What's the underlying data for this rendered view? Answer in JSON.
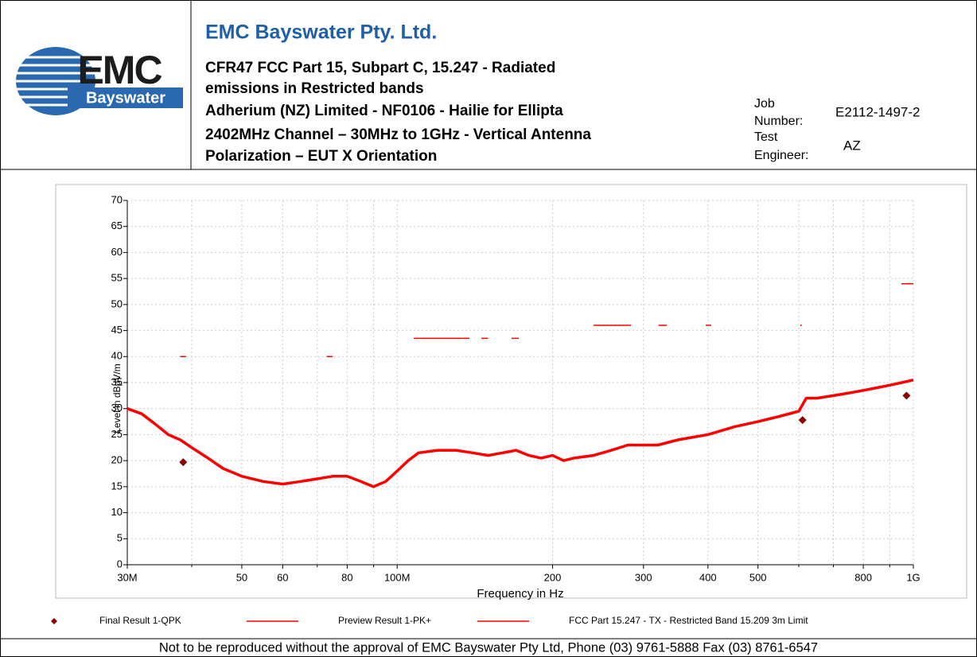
{
  "header": {
    "logo_text": "EMC",
    "logo_subtext": "Bayswater",
    "company": "EMC Bayswater Pty. Ltd.",
    "subtitle_lines": [
      "CFR47 FCC Part 15, Subpart C, 15.247 - Radiated",
      "emissions in Restricted bands",
      "Adherium (NZ) Limited - NF0106 - Hailie for Ellipta",
      "2402MHz Channel – 30MHz to 1GHz - Vertical Antenna",
      "Polarization – EUT X Orientation"
    ],
    "job_number_label": [
      "Job",
      "Number:"
    ],
    "job_number": "E2112-1497-2",
    "test_engineer_label": [
      "Test",
      "Engineer:"
    ],
    "test_engineer": "AZ"
  },
  "chart_data": {
    "type": "line",
    "xscale": "log",
    "grid": true,
    "xlabel": "Frequency in Hz",
    "ylabel": "Level in dBµV/m",
    "xlim": [
      30000000,
      1000000000
    ],
    "ylim": [
      0,
      70
    ],
    "xticks": [
      {
        "value": 30000000,
        "label": "30M"
      },
      {
        "value": 50000000,
        "label": "50"
      },
      {
        "value": 60000000,
        "label": "60"
      },
      {
        "value": 80000000,
        "label": "80"
      },
      {
        "value": 100000000,
        "label": "100M"
      },
      {
        "value": 200000000,
        "label": "200"
      },
      {
        "value": 300000000,
        "label": "300"
      },
      {
        "value": 400000000,
        "label": "400"
      },
      {
        "value": 500000000,
        "label": "500"
      },
      {
        "value": 800000000,
        "label": "800"
      },
      {
        "value": 1000000000,
        "label": "1G"
      }
    ],
    "xminorticks": [
      40000000,
      70000000,
      90000000,
      600000000,
      700000000,
      900000000
    ],
    "yticks": [
      0,
      5,
      10,
      15,
      20,
      25,
      30,
      35,
      40,
      45,
      50,
      55,
      60,
      65,
      70
    ],
    "series": [
      {
        "name": "Final Result 1-QPK",
        "color": "#8b0000",
        "marker": "diamond",
        "x": [
          38500000,
          610000000,
          970000000
        ],
        "values": [
          19.7,
          27.8,
          32.5
        ]
      },
      {
        "name": "Preview Result 1-PK+",
        "color": "#ff0000",
        "x": [
          30000000,
          32000000,
          34000000,
          36000000,
          38000000,
          40000000,
          43000000,
          46000000,
          50000000,
          55000000,
          60000000,
          65000000,
          70000000,
          75000000,
          80000000,
          85000000,
          90000000,
          95000000,
          100000000,
          105000000,
          110000000,
          120000000,
          130000000,
          140000000,
          150000000,
          160000000,
          170000000,
          180000000,
          190000000,
          200000000,
          210000000,
          220000000,
          240000000,
          260000000,
          280000000,
          300000000,
          320000000,
          350000000,
          400000000,
          450000000,
          500000000,
          550000000,
          600000000,
          620000000,
          650000000,
          700000000,
          750000000,
          800000000,
          850000000,
          900000000,
          950000000,
          1000000000
        ],
        "values": [
          30,
          29,
          27,
          25,
          24,
          22.5,
          20.5,
          18.5,
          17,
          16,
          15.5,
          16,
          16.5,
          17,
          17,
          16,
          15,
          16,
          18,
          20,
          21.5,
          22,
          22,
          21.5,
          21,
          21.5,
          22,
          21,
          20.5,
          21,
          20,
          20.5,
          21,
          22,
          23,
          23,
          23,
          24,
          25,
          26.5,
          27.5,
          28.5,
          29.5,
          32,
          32,
          32.5,
          33,
          33.5,
          34,
          34.5,
          35,
          35.5
        ]
      },
      {
        "name": "FCC Part 15.247 - TX - Restricted Band 15.209 3m Limit",
        "color": "#ff0000",
        "x": [
          38000000,
          39000000,
          null,
          73000000,
          75000000,
          null,
          107700000,
          138000000,
          null,
          145600000,
          150000000,
          null,
          166600000,
          172000000,
          null,
          240000000,
          283800000,
          null,
          321000000,
          333000000,
          null,
          396000000,
          406000000,
          null,
          604000000,
          608000000,
          null,
          948000000,
          1000000000
        ],
        "values": [
          40,
          40,
          null,
          40,
          40,
          null,
          43.5,
          43.5,
          null,
          43.5,
          43.5,
          null,
          43.5,
          43.5,
          null,
          46,
          46,
          null,
          46,
          46,
          null,
          46,
          46,
          null,
          46,
          46,
          null,
          54,
          54
        ]
      }
    ]
  },
  "footer": "Not to be reproduced without the approval of EMC Bayswater Pty Ltd, Phone (03) 9761-5888 Fax (03) 8761-6547"
}
